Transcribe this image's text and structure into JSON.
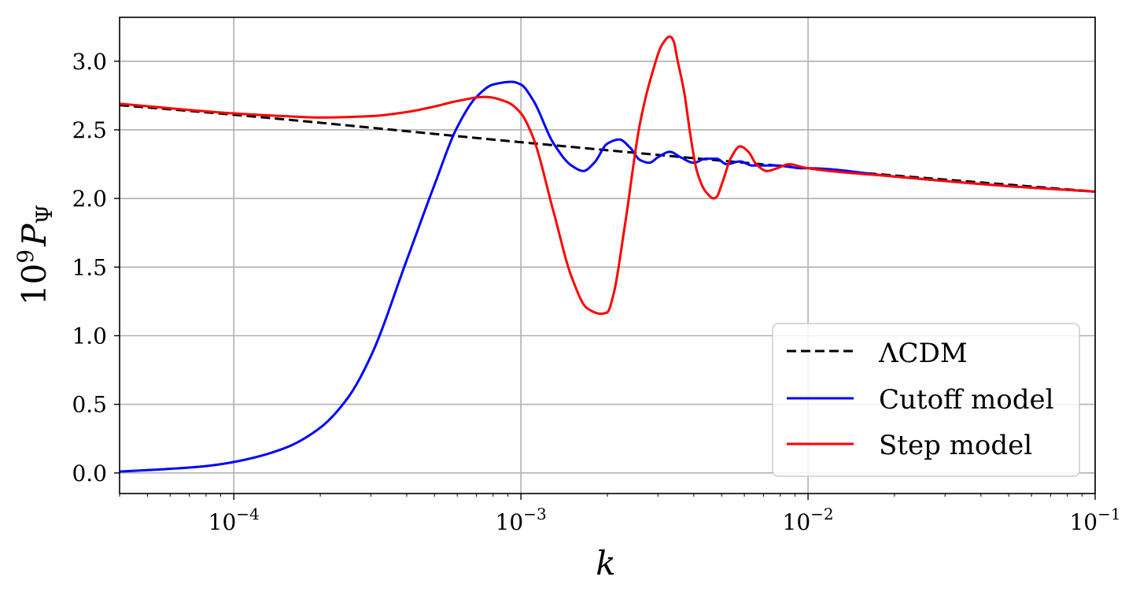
{
  "chart_data": {
    "type": "line",
    "xscale": "log",
    "xlim": [
      4e-05,
      0.1
    ],
    "ylim": [
      -0.15,
      3.32
    ],
    "grid": true,
    "xlabel": "k",
    "ylabel": "10⁹P_Ψ",
    "yticks": [
      0.0,
      0.5,
      1.0,
      1.5,
      2.0,
      2.5,
      3.0
    ],
    "ytick_labels": [
      "0.0",
      "0.5",
      "1.0",
      "1.5",
      "2.0",
      "2.5",
      "3.0"
    ],
    "xticks": [
      0.0001,
      0.001,
      0.01,
      0.1
    ],
    "xtick_labels": [
      {
        "base": "10",
        "exp": "−4"
      },
      {
        "base": "10",
        "exp": "−3"
      },
      {
        "base": "10",
        "exp": "−2"
      },
      {
        "base": "10",
        "exp": "−1"
      }
    ],
    "legend_position": "lower-right",
    "series": [
      {
        "name": "ΛCDM",
        "color": "#000000",
        "style": "dashed",
        "x": [
          4e-05,
          0.0001,
          0.001,
          0.01,
          0.1
        ],
        "y": [
          2.68,
          2.61,
          2.41,
          2.22,
          2.05
        ]
      },
      {
        "name": "Cutoff model",
        "color": "#0000ff",
        "style": "solid",
        "x": [
          4e-05,
          6e-05,
          8e-05,
          0.0001,
          0.00015,
          0.0002,
          0.00025,
          0.0003,
          0.0004,
          0.0005,
          0.0006,
          0.0007,
          0.0008,
          0.00093,
          0.001,
          0.0011,
          0.0013,
          0.0015,
          0.00165,
          0.0018,
          0.002,
          0.0022,
          0.0024,
          0.0026,
          0.0028,
          0.003,
          0.0033,
          0.0036,
          0.004,
          0.0044,
          0.0048,
          0.0052,
          0.0058,
          0.0064,
          0.007,
          0.0078,
          0.0086,
          0.0095,
          0.01,
          0.02,
          0.05,
          0.1
        ],
        "y": [
          0.01,
          0.03,
          0.05,
          0.08,
          0.18,
          0.33,
          0.55,
          0.85,
          1.55,
          2.1,
          2.52,
          2.74,
          2.83,
          2.85,
          2.83,
          2.72,
          2.4,
          2.24,
          2.2,
          2.26,
          2.4,
          2.43,
          2.37,
          2.28,
          2.26,
          2.3,
          2.34,
          2.3,
          2.26,
          2.29,
          2.29,
          2.25,
          2.27,
          2.24,
          2.24,
          2.24,
          2.23,
          2.22,
          2.22,
          2.16,
          2.09,
          2.05
        ]
      },
      {
        "name": "Step model",
        "color": "#ff0000",
        "style": "solid",
        "x": [
          4e-05,
          0.0001,
          0.00015,
          0.0002,
          0.0003,
          0.0004,
          0.0005,
          0.0006,
          0.00075,
          0.0009,
          0.001,
          0.0011,
          0.0013,
          0.0015,
          0.0017,
          0.0019,
          0.002,
          0.0021,
          0.0023,
          0.0026,
          0.0029,
          0.0031,
          0.0033,
          0.0034,
          0.0035,
          0.0037,
          0.0039,
          0.0041,
          0.0044,
          0.0047,
          0.0048,
          0.005,
          0.0054,
          0.0058,
          0.0062,
          0.0066,
          0.0072,
          0.0078,
          0.0086,
          0.0095,
          0.01,
          0.02,
          0.05,
          0.1
        ],
        "y": [
          2.69,
          2.62,
          2.6,
          2.59,
          2.6,
          2.63,
          2.67,
          2.71,
          2.74,
          2.7,
          2.62,
          2.45,
          1.9,
          1.43,
          1.2,
          1.16,
          1.17,
          1.3,
          1.8,
          2.55,
          2.95,
          3.12,
          3.18,
          3.15,
          3.02,
          2.78,
          2.45,
          2.2,
          2.05,
          2.0,
          2.01,
          2.1,
          2.3,
          2.38,
          2.34,
          2.25,
          2.2,
          2.22,
          2.25,
          2.23,
          2.22,
          2.16,
          2.09,
          2.05
        ]
      }
    ]
  }
}
